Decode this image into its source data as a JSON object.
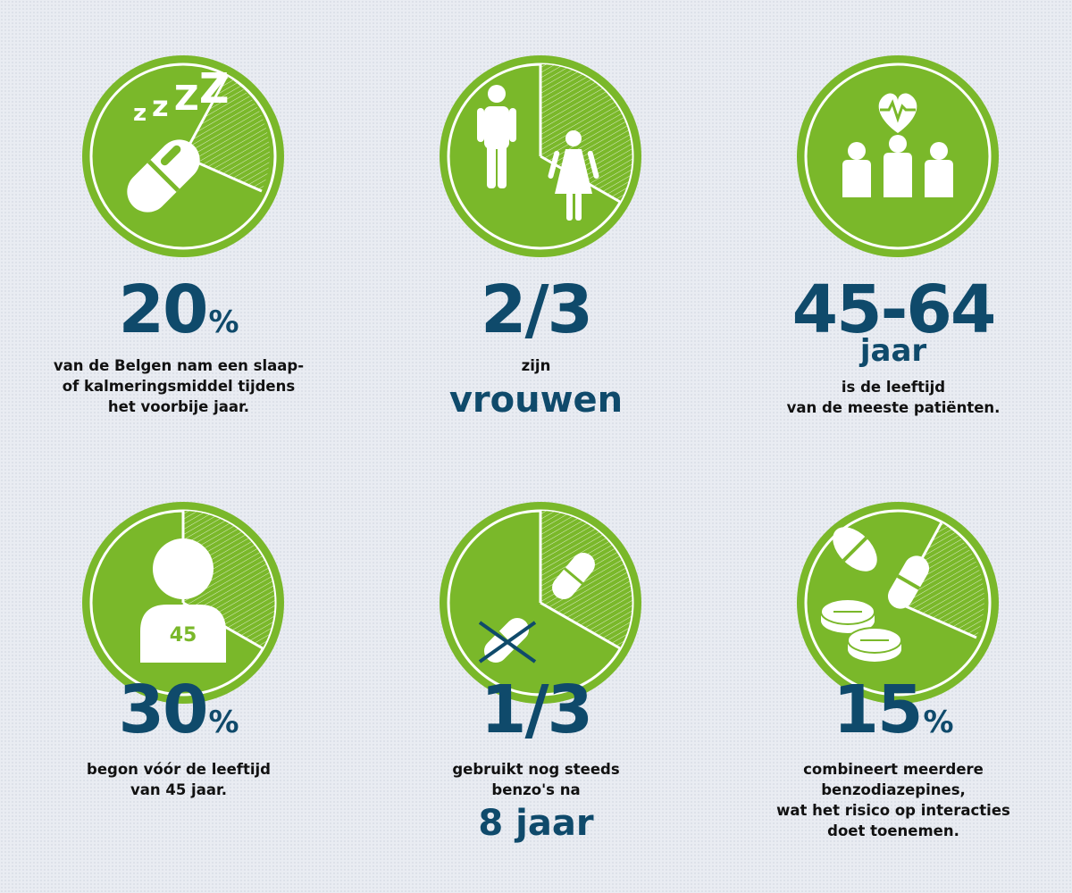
{
  "colors": {
    "green": "#7ab82a",
    "navy": "#0f4a6b",
    "white": "#ffffff",
    "background": "#e9ecf2"
  },
  "stats": [
    {
      "icon": "sleeping-pill-icon",
      "value": "20",
      "unit": "%",
      "description": [
        "van de Belgen nam een slaap-",
        "of kalmeringsmiddel tijdens",
        "het voorbije jaar."
      ]
    },
    {
      "icon": "man-woman-icon",
      "value": "2/3",
      "pre": "zijn",
      "highlight": "vrouwen"
    },
    {
      "icon": "heart-people-icon",
      "value": "45-64",
      "unit_word": "jaar",
      "description": [
        "is de leeftijd",
        "van de meeste patiënten."
      ]
    },
    {
      "icon": "person-45-icon",
      "icon_label": "45",
      "value": "30",
      "unit": "%",
      "description": [
        "begon vóór de leeftijd",
        "van 45 jaar."
      ]
    },
    {
      "icon": "crossed-pills-icon",
      "value": "1/3",
      "description": [
        "gebruikt nog steeds",
        "benzo's na"
      ],
      "highlight": "8 jaar"
    },
    {
      "icon": "multiple-pills-icon",
      "value": "15",
      "unit": "%",
      "description": [
        "combineert meerdere",
        "benzodiazepines,",
        "wat het risico op interacties",
        "doet toenemen."
      ]
    }
  ]
}
